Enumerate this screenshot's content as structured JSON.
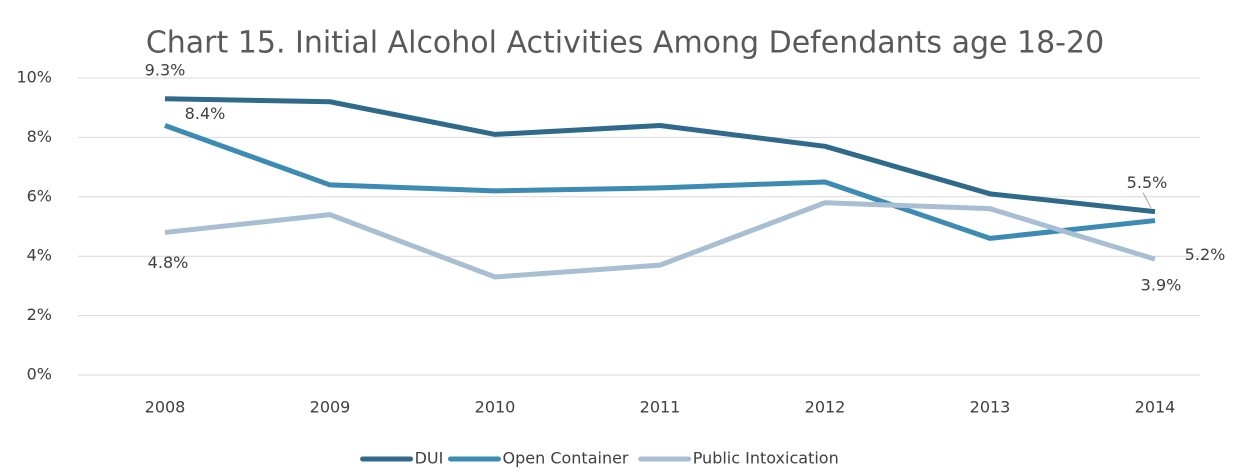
{
  "chart_data": {
    "type": "line",
    "title": "Chart 15. Initial Alcohol Activities Among Defendants age 18-20",
    "categories": [
      "2008",
      "2009",
      "2010",
      "2011",
      "2012",
      "2013",
      "2014"
    ],
    "series": [
      {
        "name": "DUI",
        "color": "#2f6a8a",
        "values": [
          9.3,
          9.2,
          8.1,
          8.4,
          7.7,
          6.1,
          5.5
        ],
        "value_labels": [
          "9.3%",
          null,
          null,
          null,
          null,
          null,
          "5.5%"
        ]
      },
      {
        "name": "Open Container",
        "color": "#3d8ab3",
        "values": [
          8.4,
          6.4,
          6.2,
          6.3,
          6.5,
          4.6,
          5.2
        ],
        "value_labels": [
          "8.4%",
          null,
          null,
          null,
          null,
          null,
          "5.2%"
        ]
      },
      {
        "name": "Public Intoxication",
        "color": "#a8bed2",
        "values": [
          4.8,
          5.4,
          3.3,
          3.7,
          5.8,
          5.6,
          3.9
        ],
        "value_labels": [
          "4.8%",
          null,
          null,
          null,
          null,
          null,
          "3.9%"
        ]
      }
    ],
    "ylim": [
      0,
      10
    ],
    "yticks": [
      {
        "value": 0,
        "label": "0%"
      },
      {
        "value": 2,
        "label": "2%"
      },
      {
        "value": 4,
        "label": "4%"
      },
      {
        "value": 6,
        "label": "6%"
      },
      {
        "value": 8,
        "label": "8%"
      },
      {
        "value": 10,
        "label": "10%"
      }
    ],
    "grid": true,
    "legend": "bottom"
  }
}
